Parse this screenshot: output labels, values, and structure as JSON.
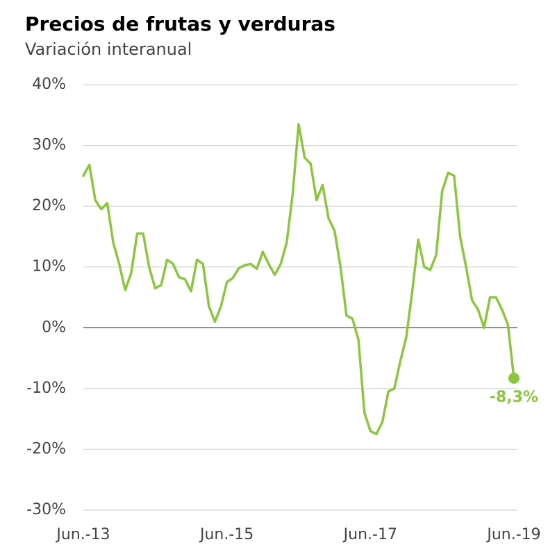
{
  "chart_data": {
    "type": "line",
    "title": "Precios de frutas y verduras",
    "subtitle": "Variación interanual",
    "categories": [
      "Jun.-13",
      null,
      null,
      null,
      null,
      null,
      null,
      null,
      null,
      null,
      null,
      null,
      null,
      null,
      null,
      null,
      null,
      null,
      null,
      null,
      null,
      null,
      null,
      null,
      "Jun.-15",
      null,
      null,
      null,
      null,
      null,
      null,
      null,
      null,
      null,
      null,
      null,
      null,
      null,
      null,
      null,
      null,
      null,
      null,
      null,
      null,
      null,
      null,
      null,
      "Jun.-17",
      null,
      null,
      null,
      null,
      null,
      null,
      null,
      null,
      null,
      null,
      null,
      null,
      null,
      null,
      null,
      null,
      null,
      null,
      null,
      null,
      null,
      null,
      null,
      "Jun.-19"
    ],
    "series": [
      {
        "name": "Frutas y verduras",
        "color": "#8cc63f",
        "values": [
          25,
          26.8,
          21,
          19.5,
          20.5,
          14,
          10.5,
          6.2,
          9,
          15.5,
          15.5,
          10,
          6.5,
          7,
          11.2,
          10.5,
          8.3,
          8,
          6,
          11.2,
          10.5,
          3.5,
          1,
          3.5,
          7.5,
          8.2,
          9.8,
          10.3,
          10.5,
          9.7,
          12.5,
          10.5,
          8.7,
          10.5,
          14,
          22,
          33.5,
          28,
          27,
          21,
          23.5,
          18,
          16,
          10,
          2,
          1.5,
          -2,
          -14,
          -17,
          -17.5,
          -15.5,
          -10.5,
          -10,
          -5.5,
          -1.5,
          6,
          14.5,
          10,
          9.5,
          12,
          22.5,
          25.5,
          25,
          15,
          10,
          4.5,
          3,
          0,
          5,
          5,
          3,
          0.5,
          -8.3
        ],
        "value_labels": {
          "72": "-8,3%"
        }
      }
    ],
    "ylim": [
      -30,
      40
    ],
    "yticks": [
      {
        "value": -30,
        "label": "-30%"
      },
      {
        "value": -20,
        "label": "-20%"
      },
      {
        "value": -10,
        "label": "-10%"
      },
      {
        "value": 0,
        "label": "0%"
      },
      {
        "value": 10,
        "label": "10%"
      },
      {
        "value": 20,
        "label": "20%"
      },
      {
        "value": 30,
        "label": "30%"
      },
      {
        "value": 40,
        "label": "40%"
      }
    ],
    "grid": true
  }
}
